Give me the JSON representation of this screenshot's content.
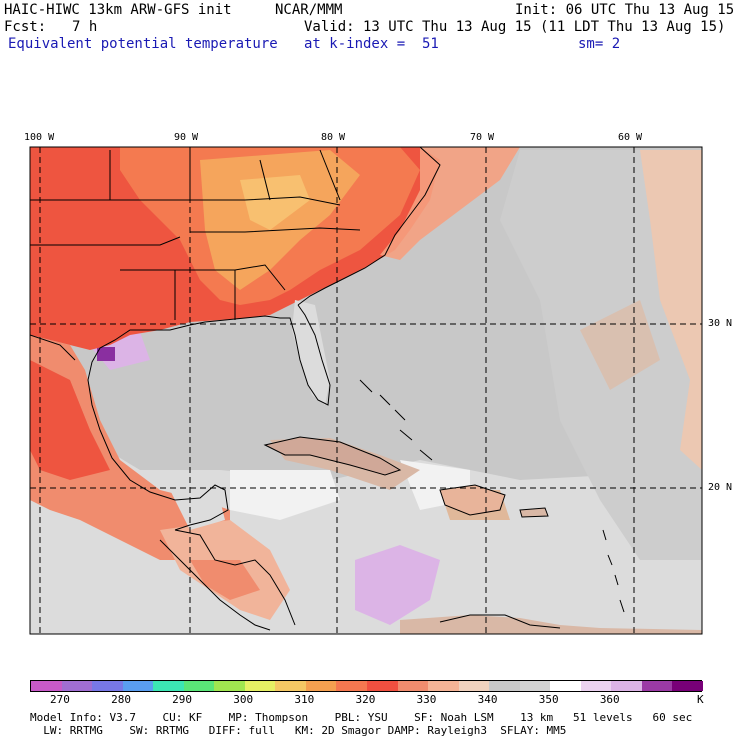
{
  "header": {
    "model_line": "HAIC-HIWC 13km ARW-GFS init",
    "center": "NCAR/MMM",
    "init": "Init: 06 UTC Thu 13 Aug 15",
    "fcst_label": "Fcst:",
    "fcst_value": "7 h",
    "valid": "Valid: 13 UTC Thu 13 Aug 15 (11 LDT Thu 13 Aug 15)",
    "field": "Equivalent potential temperature",
    "level": "at k-index =  51",
    "smoothing": "sm= 2"
  },
  "map": {
    "lon_labels": [
      "100 W",
      "90 W",
      "80 W",
      "70 W",
      "60 W"
    ],
    "lat_labels": [
      "30 N",
      "20 N"
    ],
    "colors": {
      "land_warm": "#ee5540",
      "land_hot": "#f47a50",
      "land_orange": "#f5a55c",
      "ocean_gray": "#c8c8c8",
      "ocean_light": "#dcdcdc",
      "tan": "#d9b8a6",
      "peach": "#f1c7ad",
      "lavender": "#dcb4e6",
      "purple": "#8a2fa0"
    }
  },
  "colorbar": {
    "unit": "K",
    "ticks": [
      "270",
      "280",
      "290",
      "300",
      "310",
      "320",
      "330",
      "340",
      "350",
      "360"
    ],
    "colors": [
      "#c85ac8",
      "#a06ed2",
      "#7878e6",
      "#5a9ef0",
      "#3ce6b4",
      "#5ae678",
      "#a0e650",
      "#e6f064",
      "#f5c864",
      "#f5a050",
      "#f57850",
      "#f05040",
      "#f08c6e",
      "#f5b496",
      "#f0d2be",
      "#c8c8c8",
      "#d2d2d2",
      "#ffffff",
      "#ebd2f0",
      "#dcb4e6",
      "#9b3aa5",
      "#780078"
    ]
  },
  "footer": {
    "line1": "Model Info: V3.7    CU: KF    MP: Thompson    PBL: YSU    SF: Noah LSM    13 km   51 levels   60 sec",
    "line2": "  LW: RRTMG    SW: RRTMG   DIFF: full   KM: 2D Smagor DAMP: Rayleigh3  SFLAY: MM5"
  }
}
